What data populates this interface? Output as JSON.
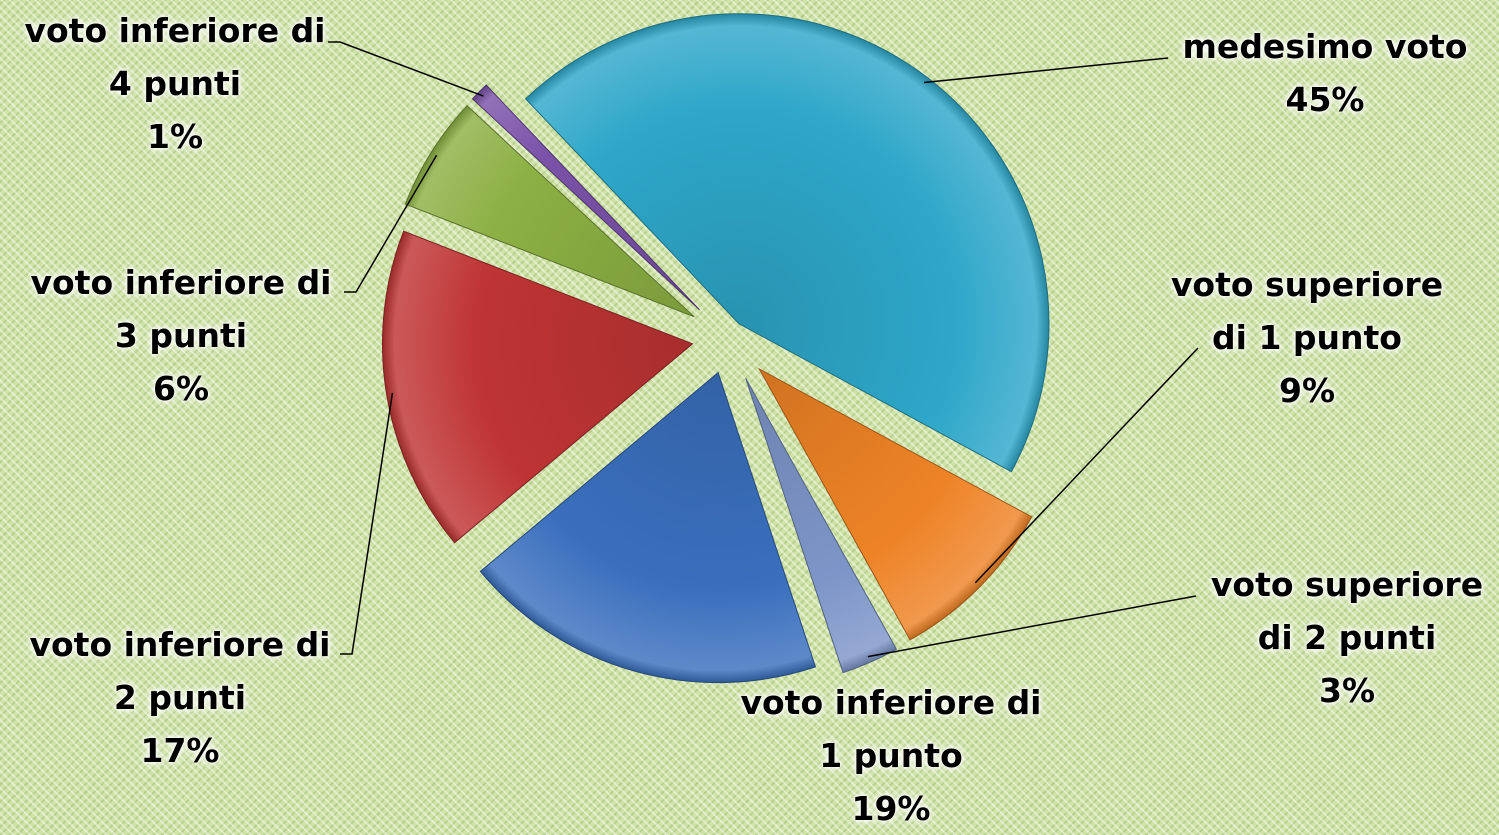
{
  "chart_data": {
    "type": "pie",
    "title": "",
    "legend": "none",
    "slices": [
      {
        "name": "medesimo voto",
        "lines": [
          "medesimo voto"
        ],
        "value": 45,
        "label": "45%",
        "color": "#2ea7c9"
      },
      {
        "name": "voto superiore di 1 punto",
        "lines": [
          "voto superiore",
          "di 1 punto"
        ],
        "value": 9,
        "label": "9%",
        "color": "#ee8326"
      },
      {
        "name": "voto superiore di 2 punti",
        "lines": [
          "voto superiore",
          "di 2 punti"
        ],
        "value": 3,
        "label": "3%",
        "color": "#7d95c8"
      },
      {
        "name": "voto inferiore di 1 punto",
        "lines": [
          "voto inferiore di",
          "1 punto"
        ],
        "value": 19,
        "label": "19%",
        "color": "#3a6fbd"
      },
      {
        "name": "voto inferiore di 2 punti",
        "lines": [
          "voto inferiore di",
          "2 punti"
        ],
        "value": 17,
        "label": "17%",
        "color": "#bf3434"
      },
      {
        "name": "voto inferiore di 3 punti",
        "lines": [
          "voto inferiore di",
          "3 punti"
        ],
        "value": 6,
        "label": "6%",
        "color": "#8cb043"
      },
      {
        "name": "voto inferiore di 4 punti",
        "lines": [
          "voto inferiore di",
          "4 punti"
        ],
        "value": 1,
        "label": "1%",
        "color": "#7a52a8"
      }
    ]
  }
}
